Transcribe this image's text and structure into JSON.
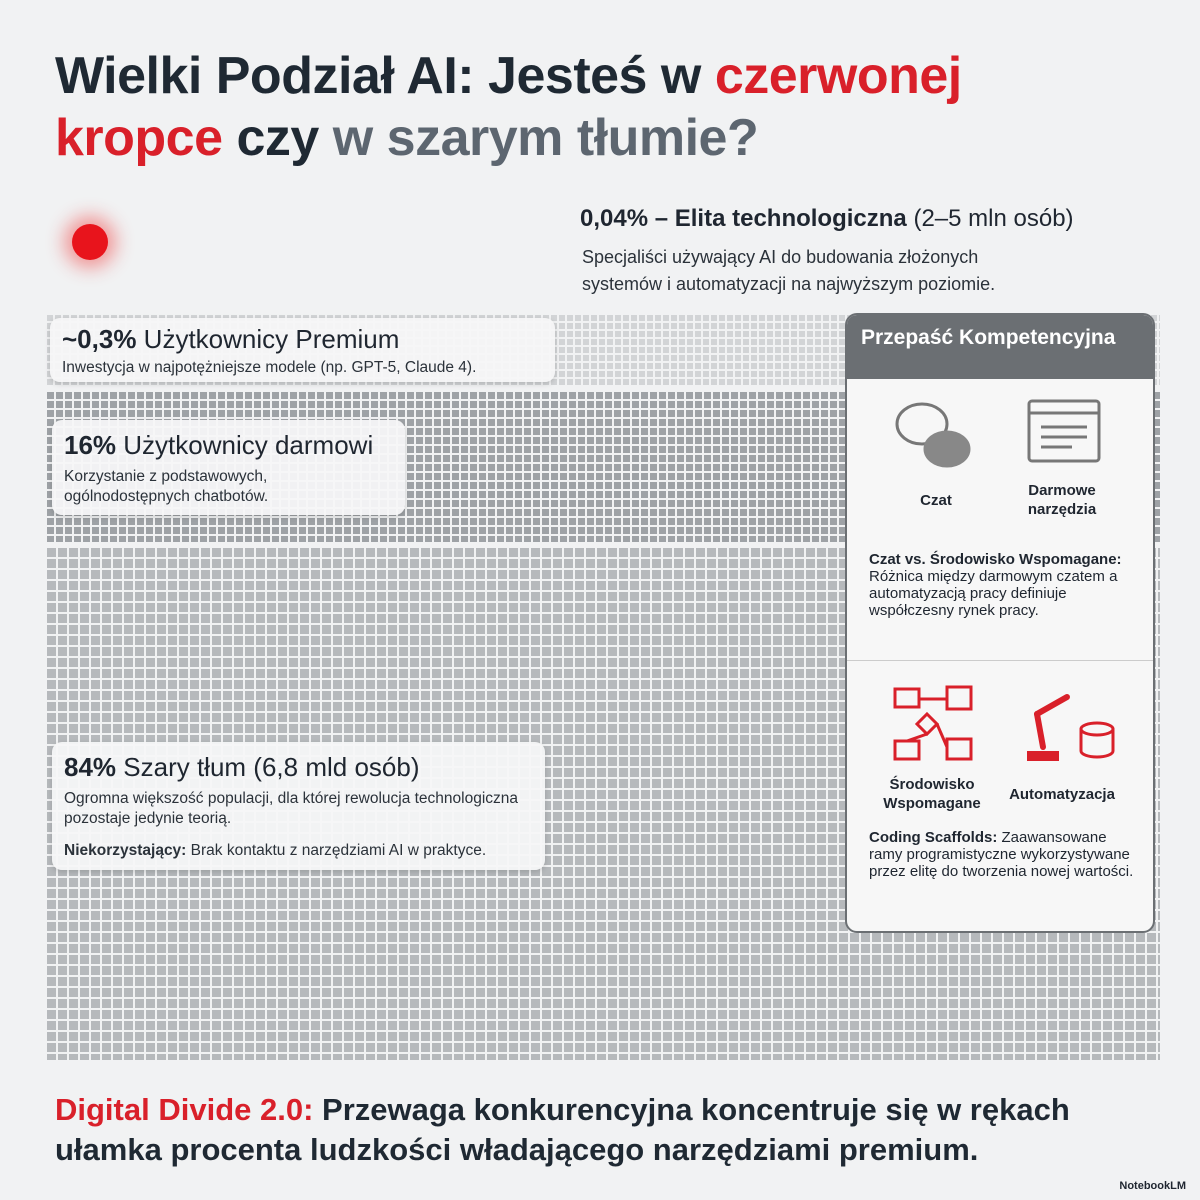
{
  "header": {
    "title": [
      "Wielki Podział AI: Jesteś w ",
      "czerwonej",
      "kropce",
      " czy ",
      "w szarym tłumie?"
    ]
  },
  "elite": {
    "share": "0,04%",
    "label": " – Elita technologiczna",
    "count": " (2–5 mln osób)",
    "description": "Specjaliści używający AI do budowania złożonych systemów i automatyzacji na najwyższym poziomie."
  },
  "premium": {
    "share": "~0,3%",
    "label": " Użytkownicy Premium",
    "description": "Inwestycja w najpotężniejsze modele (np. GPT-5, Claude 4)."
  },
  "free": {
    "share": "16%",
    "label": " Użytkownicy darmowi",
    "description": "Korzystanie z podstawowych, ogólnodostępnych chatbotów."
  },
  "crowd": {
    "share": "84%",
    "label": " Szary tłum (6,8 mld osób)",
    "description": "Ogromna większość populacji, dla której rewolucja technologiczna pozostaje jedynie teorią.",
    "note_term": "Niekorzystający:",
    "note_text": " Brak kontaktu z narzędziami AI w praktyce."
  },
  "panel": {
    "title": "Przepaść Kompetencyjna",
    "icons_top": [
      "Czat",
      "Darmowe narzędzia"
    ],
    "compare_term": "Czat vs. Środowisko Wspomagane:",
    "compare_text": "Różnica między darmowym czatem a automatyzacją pracy definiuje współczesny rynek pracy.",
    "icons_bottom": [
      "Środowisko Wspomagane",
      "Automatyzacja"
    ],
    "scaffold_term": "Coding Scaffolds:",
    "scaffold_text": "Zaawansowane ramy programistyczne wykorzystywane przez elitę do tworzenia nowej wartości."
  },
  "footer": {
    "lead": "Digital Divide 2.0:",
    "text": " Przewaga konkurencyjna koncentruje się w rękach ułamka procenta ludzkości władającego narzędziami premium.",
    "brand": "NotebookLM"
  }
}
